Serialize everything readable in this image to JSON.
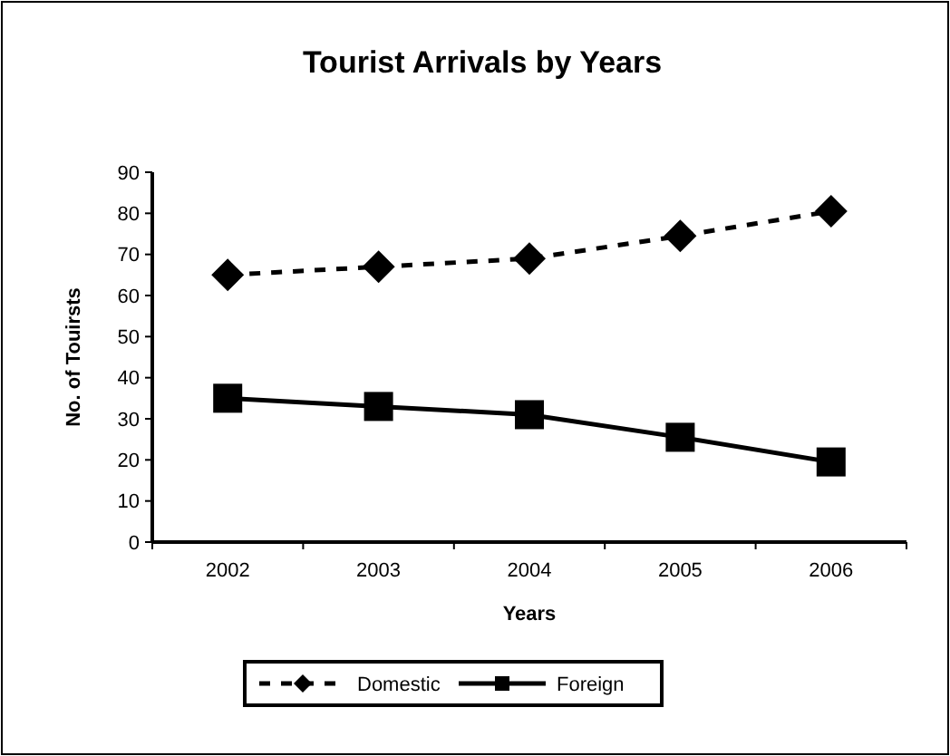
{
  "chart_data": {
    "type": "line",
    "title": "Tourist Arrivals by Years",
    "xlabel": "Years",
    "ylabel": "No. of Touirsts",
    "categories": [
      "2002",
      "2003",
      "2004",
      "2005",
      "2006"
    ],
    "series": [
      {
        "name": "Domestic",
        "color": "#000000",
        "values": [
          65,
          67,
          69,
          74.5,
          80.5
        ],
        "marker": "diamond",
        "line_style": "dashed"
      },
      {
        "name": "Foreign",
        "color": "#000000",
        "values": [
          35,
          33,
          31,
          25.5,
          19.5
        ],
        "marker": "square",
        "line_style": "solid"
      }
    ],
    "ylim": [
      0,
      90
    ],
    "yticks": [
      0,
      10,
      20,
      30,
      40,
      50,
      60,
      70,
      80,
      90
    ],
    "grid": false,
    "legend": "bottom"
  }
}
